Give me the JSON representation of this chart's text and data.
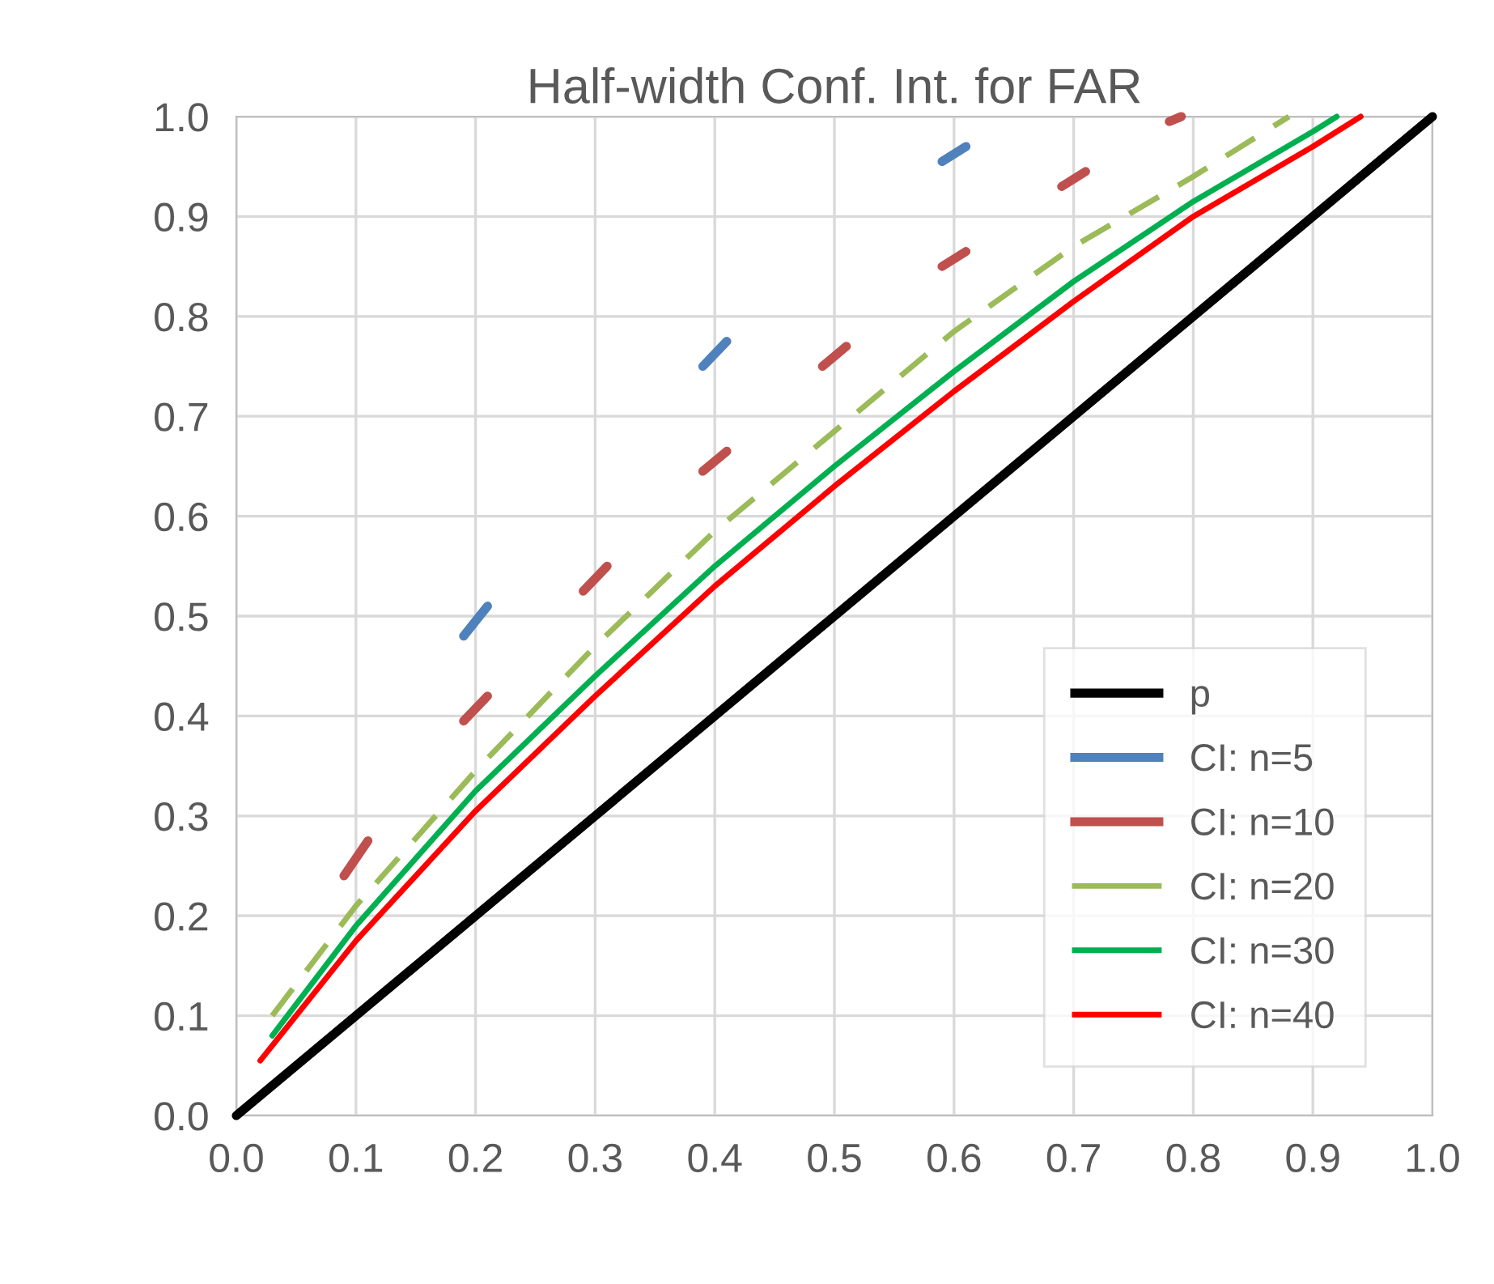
{
  "chart_data": {
    "type": "line",
    "title": "Half-width Conf. Int. for FAR",
    "xlim": [
      0.0,
      1.0
    ],
    "ylim": [
      0.0,
      1.0
    ],
    "xticks": [
      {
        "value": 0,
        "label": "0.0"
      },
      0.1,
      0.2,
      0.3,
      0.4,
      0.5,
      0.6,
      0.7,
      0.8,
      0.9,
      {
        "value": 1,
        "label": "1.0"
      }
    ],
    "yticks": [
      {
        "value": 0,
        "label": "0.0"
      },
      0.1,
      0.2,
      0.3,
      0.4,
      0.5,
      0.6,
      0.7,
      0.8,
      0.9,
      {
        "value": 1,
        "label": "1.0"
      }
    ],
    "grid": true,
    "legend": "bottom right",
    "marker": "none",
    "series": [
      {
        "name": "p",
        "color": "#000000",
        "x": [
          0,
          1
        ],
        "values": [
          0,
          1
        ]
      },
      {
        "name": "CI: n=5",
        "color": "#4f81bd",
        "x": [
          0.19,
          0.21,
          0.3,
          0.39,
          0.41,
          0.5,
          0.59,
          0.61
        ],
        "values": [
          0.48,
          0.51,
          null,
          0.75,
          0.775,
          null,
          0.955,
          0.97
        ]
      },
      {
        "name": "CI: n=10",
        "color": "#c0504d",
        "x": [
          0.09,
          0.11,
          0.15,
          0.19,
          0.21,
          0.25,
          0.29,
          0.31,
          0.35,
          0.39,
          0.41,
          0.45,
          0.49,
          0.51,
          0.55,
          0.59,
          0.61,
          0.65,
          0.69,
          0.71,
          0.75,
          0.78,
          0.79
        ],
        "values": [
          0.24,
          0.275,
          null,
          0.395,
          0.42,
          null,
          0.525,
          0.55,
          null,
          0.645,
          0.665,
          null,
          0.75,
          0.77,
          null,
          0.85,
          0.865,
          null,
          0.93,
          0.945,
          null,
          0.995,
          1.0
        ]
      },
      {
        "name": "CI: n=20",
        "color": "#9bbb59",
        "line_style": "dashed",
        "x": [
          0.03,
          0.1,
          0.2,
          0.3,
          0.4,
          0.5,
          0.6,
          0.7,
          0.8,
          0.88
        ],
        "values": [
          0.1,
          0.21,
          0.345,
          0.47,
          0.585,
          0.685,
          0.785,
          0.87,
          0.94,
          1.0
        ]
      },
      {
        "name": "CI: n=30",
        "color": "#00b050",
        "x": [
          0.03,
          0.1,
          0.2,
          0.3,
          0.4,
          0.5,
          0.6,
          0.7,
          0.8,
          0.9,
          0.92
        ],
        "values": [
          0.08,
          0.19,
          0.325,
          0.44,
          0.55,
          0.65,
          0.745,
          0.835,
          0.915,
          0.985,
          1.0
        ]
      },
      {
        "name": "CI: n=40",
        "color": "#ff0000",
        "x": [
          0.02,
          0.1,
          0.2,
          0.3,
          0.4,
          0.5,
          0.6,
          0.7,
          0.8,
          0.9,
          0.94
        ],
        "values": [
          0.055,
          0.175,
          0.305,
          0.42,
          0.53,
          0.63,
          0.725,
          0.815,
          0.9,
          0.97,
          1.0
        ]
      }
    ]
  }
}
